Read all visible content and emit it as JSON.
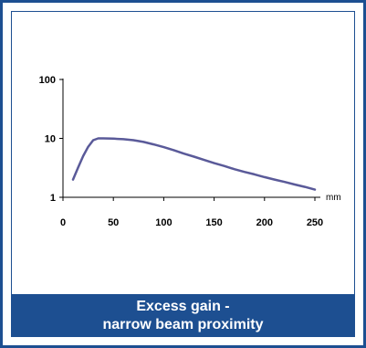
{
  "caption": {
    "line1": "Excess gain -",
    "line2": "narrow beam  proximity"
  },
  "colors": {
    "frame": "#1d4f91",
    "caption_bg": "#1d4f91",
    "caption_text": "#ffffff",
    "series_line": "#5a5a99",
    "axis": "#000000"
  },
  "chart_data": {
    "type": "line",
    "title": "Excess gain - narrow beam  proximity",
    "xlabel": "",
    "ylabel": "",
    "x_unit": "mm",
    "xlim": [
      0,
      250
    ],
    "ylim": [
      1,
      100
    ],
    "y_scale": "log",
    "grid": false,
    "legend": "none",
    "x_ticks": [
      0,
      50,
      100,
      150,
      200,
      250
    ],
    "x_tick_labels": [
      "0",
      "50",
      "100",
      "150",
      "200",
      "250"
    ],
    "y_ticks": [
      1,
      10,
      100
    ],
    "y_tick_labels": [
      "1",
      "10",
      "100"
    ],
    "series": [
      {
        "x": [
          10,
          15,
          20,
          25,
          30,
          35,
          40,
          50,
          60,
          70,
          80,
          90,
          100,
          110,
          120,
          130,
          140,
          150,
          160,
          170,
          180,
          190,
          200,
          210,
          220,
          230,
          240,
          250
        ],
        "y": [
          2.0,
          3.2,
          5.0,
          7.2,
          9.3,
          10.0,
          10.0,
          9.9,
          9.7,
          9.3,
          8.7,
          7.9,
          7.1,
          6.3,
          5.5,
          4.9,
          4.3,
          3.8,
          3.4,
          3.0,
          2.7,
          2.45,
          2.2,
          2.0,
          1.82,
          1.65,
          1.5,
          1.35
        ]
      }
    ]
  }
}
